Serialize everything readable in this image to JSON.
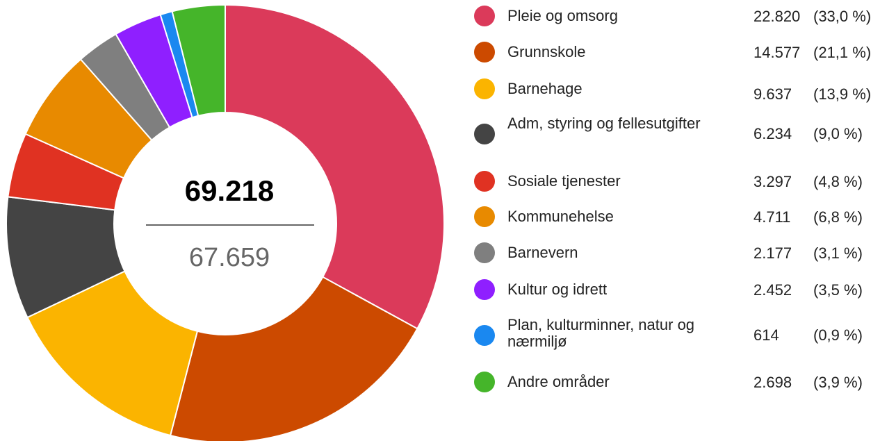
{
  "chart_data": {
    "type": "donut",
    "categories": [
      "Pleie og omsorg",
      "Grunnskole",
      "Barnehage",
      "Adm, styring og fellesutgifter",
      "Sosiale tjenester",
      "Kommunehelse",
      "Barnevern",
      "Kultur og idrett",
      "Plan, kulturminner, natur og nærmiljø",
      "Andre områder"
    ],
    "values": [
      22820,
      14577,
      9637,
      6234,
      3297,
      4711,
      2177,
      2452,
      614,
      2698
    ],
    "value_labels": [
      "22.820",
      "14.577",
      "9.637",
      "6.234",
      "3.297",
      "4.711",
      "2.177",
      "2.452",
      "614",
      "2.698"
    ],
    "percent_labels": [
      "(33,0 %)",
      "(21,1 %)",
      "(13,9 %)",
      "(9,0 %)",
      "(4,8 %)",
      "(6,8 %)",
      "(3,1 %)",
      "(3,5 %)",
      "(0,9 %)",
      "(3,9 %)"
    ],
    "colors": [
      "#db3a5a",
      "#cc4a00",
      "#fbb400",
      "#444444",
      "#e03222",
      "#e88a00",
      "#7f7f7f",
      "#8f1fff",
      "#1a88f0",
      "#45b52a"
    ],
    "center_label": "69.218",
    "center_sublabel": "67.659"
  }
}
